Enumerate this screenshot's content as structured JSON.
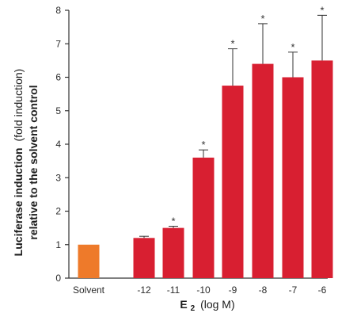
{
  "chart_data": {
    "type": "bar",
    "categories": [
      "Solvent",
      "-12",
      "-11",
      "-10",
      "-9",
      "-8",
      "-7",
      "-6"
    ],
    "values": [
      1.0,
      1.2,
      1.5,
      3.6,
      5.75,
      6.4,
      6.0,
      6.5
    ],
    "error_upper": [
      null,
      1.25,
      1.55,
      3.83,
      6.85,
      7.6,
      6.75,
      7.85
    ],
    "significance": [
      "",
      "",
      "*",
      "*",
      "*",
      "*",
      "*",
      "*"
    ],
    "ylim": [
      0,
      8
    ],
    "yticks": [
      0,
      1,
      2,
      3,
      4,
      5,
      6,
      7,
      8
    ],
    "ylabel_bold_line1": "Luciferase induction",
    "ylabel_light_line1": "(fold induction)",
    "ylabel_line2": "relative to the solvent control",
    "xlabel_main": "E",
    "xlabel_sub": "2",
    "xlabel_unit": "(log M)",
    "colors": {
      "solvent": "#ee7a2a",
      "treatment": "#d81f31",
      "axis": "#333333"
    }
  }
}
